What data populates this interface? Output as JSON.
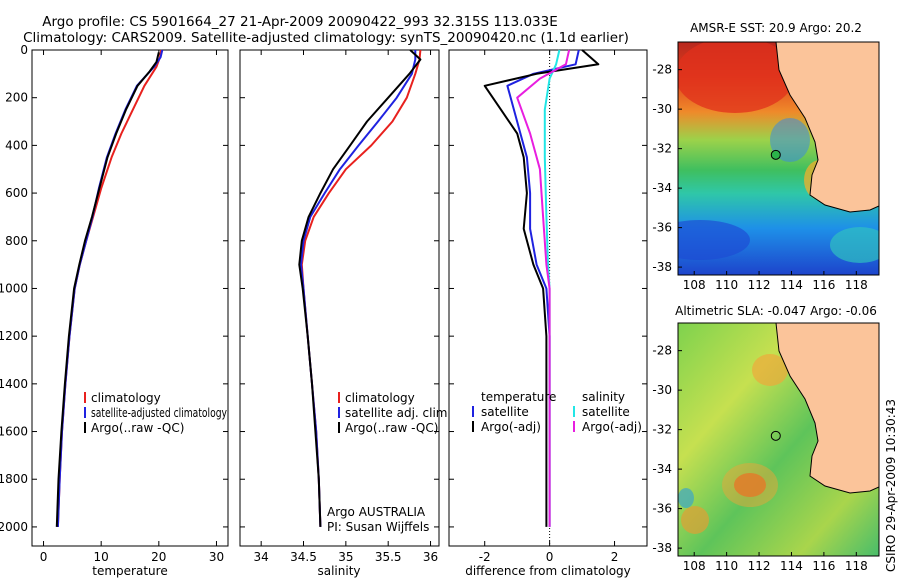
{
  "title": {
    "line1": "Argo profile: CS 5901664_27 21-Apr-2009 20090422_993 32.315S 113.033E",
    "line2": "Climatology: CARS2009. Satellite-adjusted climatology: synTS_20090420.nc (1.1d earlier)"
  },
  "colors": {
    "red": "#e8211e",
    "blue": "#1f22e0",
    "black": "#000000",
    "cyan": "#22e6e6",
    "magenta": "#e81ee0",
    "land": "#fbc49a"
  },
  "chart_data": [
    {
      "type": "line",
      "id": "temperature",
      "xlabel": "temperature",
      "xlim": [
        -2,
        32
      ],
      "ylim": [
        2080,
        0
      ],
      "xticks": [
        0,
        10,
        20,
        30
      ],
      "yticks": [
        0,
        200,
        400,
        600,
        800,
        1000,
        1200,
        1400,
        1600,
        1800,
        2000
      ],
      "legend": [
        {
          "label": "climatology",
          "color": "#e8211e"
        },
        {
          "label": "satellite-adjusted climatology",
          "color": "#1f22e0"
        },
        {
          "label": "Argo(..raw -QC)",
          "color": "#000000"
        }
      ],
      "series": [
        {
          "name": "climatology",
          "color": "#e8211e",
          "points": [
            [
              20.4,
              0
            ],
            [
              20.2,
              30
            ],
            [
              19.6,
              70
            ],
            [
              17.5,
              150
            ],
            [
              15.5,
              250
            ],
            [
              13.5,
              350
            ],
            [
              11.8,
              450
            ],
            [
              10.0,
              580
            ],
            [
              8.6,
              700
            ],
            [
              7.4,
              800
            ],
            [
              6.3,
              900
            ],
            [
              5.4,
              1000
            ],
            [
              4.5,
              1200
            ],
            [
              3.8,
              1400
            ],
            [
              3.2,
              1600
            ],
            [
              2.8,
              1800
            ],
            [
              2.5,
              2000
            ]
          ]
        },
        {
          "name": "satellite-adjusted climatology",
          "color": "#1f22e0",
          "points": [
            [
              20.6,
              0
            ],
            [
              20.3,
              30
            ],
            [
              19.2,
              70
            ],
            [
              16.2,
              150
            ],
            [
              14.2,
              250
            ],
            [
              12.5,
              350
            ],
            [
              11.0,
              450
            ],
            [
              9.6,
              580
            ],
            [
              8.5,
              700
            ],
            [
              7.4,
              800
            ],
            [
              6.3,
              900
            ],
            [
              5.4,
              1000
            ],
            [
              4.5,
              1200
            ],
            [
              3.8,
              1400
            ],
            [
              3.2,
              1600
            ],
            [
              2.8,
              1800
            ],
            [
              2.5,
              2000
            ]
          ]
        },
        {
          "name": "Argo(..raw -QC)",
          "color": "#000000",
          "points": [
            [
              20.0,
              10
            ],
            [
              19.6,
              50
            ],
            [
              18.4,
              90
            ],
            [
              16.3,
              150
            ],
            [
              14.3,
              250
            ],
            [
              12.6,
              350
            ],
            [
              11.1,
              450
            ],
            [
              9.7,
              580
            ],
            [
              8.4,
              700
            ],
            [
              7.2,
              800
            ],
            [
              6.2,
              900
            ],
            [
              5.3,
              1000
            ],
            [
              4.4,
              1200
            ],
            [
              3.7,
              1400
            ],
            [
              3.1,
              1600
            ],
            [
              2.6,
              1800
            ],
            [
              2.3,
              2000
            ]
          ]
        }
      ]
    },
    {
      "type": "line",
      "id": "salinity",
      "xlabel": "salinity",
      "xlim": [
        33.75,
        36.1
      ],
      "ylim": [
        2080,
        0
      ],
      "xticks": [
        34,
        34.5,
        35,
        35.5,
        36
      ],
      "legend": [
        {
          "label": "climatology",
          "color": "#e8211e"
        },
        {
          "label": "satellite adj. clim.",
          "color": "#1f22e0"
        },
        {
          "label": "Argo(..raw -QC)",
          "color": "#000000"
        }
      ],
      "annotation": [
        "Argo AUSTRALIA",
        "PI: Susan Wijffels"
      ],
      "series": [
        {
          "name": "climatology",
          "color": "#e8211e",
          "points": [
            [
              35.88,
              0
            ],
            [
              35.87,
              40
            ],
            [
              35.82,
              100
            ],
            [
              35.72,
              200
            ],
            [
              35.55,
              300
            ],
            [
              35.3,
              400
            ],
            [
              35.0,
              500
            ],
            [
              34.8,
              600
            ],
            [
              34.62,
              700
            ],
            [
              34.52,
              800
            ],
            [
              34.48,
              900
            ],
            [
              34.5,
              1000
            ],
            [
              34.55,
              1200
            ],
            [
              34.6,
              1400
            ],
            [
              34.65,
              1600
            ],
            [
              34.68,
              1800
            ],
            [
              34.7,
              2000
            ]
          ]
        },
        {
          "name": "satellite adj. clim.",
          "color": "#1f22e0",
          "points": [
            [
              35.82,
              0
            ],
            [
              35.82,
              40
            ],
            [
              35.78,
              100
            ],
            [
              35.6,
              200
            ],
            [
              35.38,
              300
            ],
            [
              35.15,
              400
            ],
            [
              34.93,
              500
            ],
            [
              34.75,
              600
            ],
            [
              34.58,
              700
            ],
            [
              34.5,
              800
            ],
            [
              34.47,
              900
            ],
            [
              34.5,
              1000
            ],
            [
              34.55,
              1200
            ],
            [
              34.6,
              1400
            ],
            [
              34.65,
              1600
            ],
            [
              34.68,
              1800
            ],
            [
              34.7,
              2000
            ]
          ]
        },
        {
          "name": "Argo(..raw -QC)",
          "color": "#000000",
          "points": [
            [
              35.76,
              0
            ],
            [
              35.88,
              40
            ],
            [
              35.75,
              100
            ],
            [
              35.5,
              200
            ],
            [
              35.25,
              300
            ],
            [
              35.05,
              400
            ],
            [
              34.85,
              500
            ],
            [
              34.7,
              600
            ],
            [
              34.56,
              700
            ],
            [
              34.48,
              800
            ],
            [
              34.45,
              900
            ],
            [
              34.49,
              1000
            ],
            [
              34.55,
              1200
            ],
            [
              34.6,
              1400
            ],
            [
              34.64,
              1600
            ],
            [
              34.68,
              1800
            ],
            [
              34.7,
              2000
            ]
          ]
        }
      ]
    },
    {
      "type": "line",
      "id": "difference",
      "xlabel": "difference from climatology",
      "xlim": [
        -3.1,
        3.0
      ],
      "ylim": [
        2080,
        0
      ],
      "xticks": [
        -2,
        0,
        2
      ],
      "legend_left_title": "temperature",
      "legend_right_title": "salinity",
      "legend": [
        {
          "label": "satellite",
          "color": "#1f22e0"
        },
        {
          "label": "Argo(-adj)",
          "color": "#000000"
        },
        {
          "label": "satellite",
          "color": "#22e6e6"
        },
        {
          "label": "Argo(-adj)",
          "color": "#e81ee0"
        }
      ],
      "series": [
        {
          "name": "temperature satellite",
          "color": "#1f22e0",
          "points": [
            [
              0.9,
              0
            ],
            [
              0.8,
              60
            ],
            [
              -0.5,
              100
            ],
            [
              -1.3,
              150
            ],
            [
              -1.1,
              250
            ],
            [
              -0.9,
              350
            ],
            [
              -0.7,
              450
            ],
            [
              -0.6,
              600
            ],
            [
              -0.6,
              750
            ],
            [
              -0.4,
              900
            ],
            [
              -0.1,
              1000
            ],
            [
              0.0,
              1200
            ],
            [
              0.0,
              2000
            ]
          ]
        },
        {
          "name": "temperature Argo(-adj)",
          "color": "#000000",
          "points": [
            [
              1.0,
              0
            ],
            [
              1.5,
              60
            ],
            [
              -0.4,
              100
            ],
            [
              -2.0,
              150
            ],
            [
              -1.5,
              250
            ],
            [
              -1.0,
              350
            ],
            [
              -0.8,
              450
            ],
            [
              -0.7,
              600
            ],
            [
              -0.8,
              750
            ],
            [
              -0.5,
              900
            ],
            [
              -0.2,
              1000
            ],
            [
              -0.1,
              1200
            ],
            [
              -0.1,
              2000
            ]
          ]
        },
        {
          "name": "salinity satellite",
          "color": "#22e6e6",
          "points": [
            [
              0.3,
              0
            ],
            [
              0.2,
              60
            ],
            [
              0.0,
              120
            ],
            [
              -0.15,
              250
            ],
            [
              -0.15,
              450
            ],
            [
              -0.1,
              700
            ],
            [
              -0.05,
              900
            ],
            [
              0.0,
              1000
            ],
            [
              0.0,
              2000
            ]
          ]
        },
        {
          "name": "salinity Argo(-adj)",
          "color": "#e81ee0",
          "points": [
            [
              0.6,
              0
            ],
            [
              0.5,
              60
            ],
            [
              -0.3,
              120
            ],
            [
              -1.0,
              200
            ],
            [
              -0.6,
              350
            ],
            [
              -0.3,
              500
            ],
            [
              -0.2,
              700
            ],
            [
              -0.1,
              900
            ],
            [
              0.0,
              1000
            ],
            [
              0.0,
              2000
            ]
          ]
        }
      ]
    },
    {
      "type": "heatmap",
      "id": "sst-map",
      "title": "AMSR-E SST: 20.9 Argo: 20.2",
      "xlim": [
        107,
        119.4
      ],
      "ylim": [
        -38.4,
        -26.6
      ],
      "xticks": [
        108,
        110,
        112,
        114,
        116,
        118
      ],
      "yticks": [
        -28,
        -30,
        -32,
        -34,
        -36,
        -38
      ],
      "float_position": {
        "lon": 113.033,
        "lat": -32.315
      }
    },
    {
      "type": "heatmap",
      "id": "sla-map",
      "title": "Altimetric SLA: -0.047 Argo: -0.06",
      "xlim": [
        107,
        119.4
      ],
      "ylim": [
        -38.4,
        -26.6
      ],
      "xticks": [
        108,
        110,
        112,
        114,
        116,
        118
      ],
      "yticks": [
        -28,
        -30,
        -32,
        -34,
        -36,
        -38
      ],
      "float_position": {
        "lon": 113.033,
        "lat": -32.315
      }
    }
  ],
  "stamp": "CSIRO 29-Apr-2009 10:30:43"
}
